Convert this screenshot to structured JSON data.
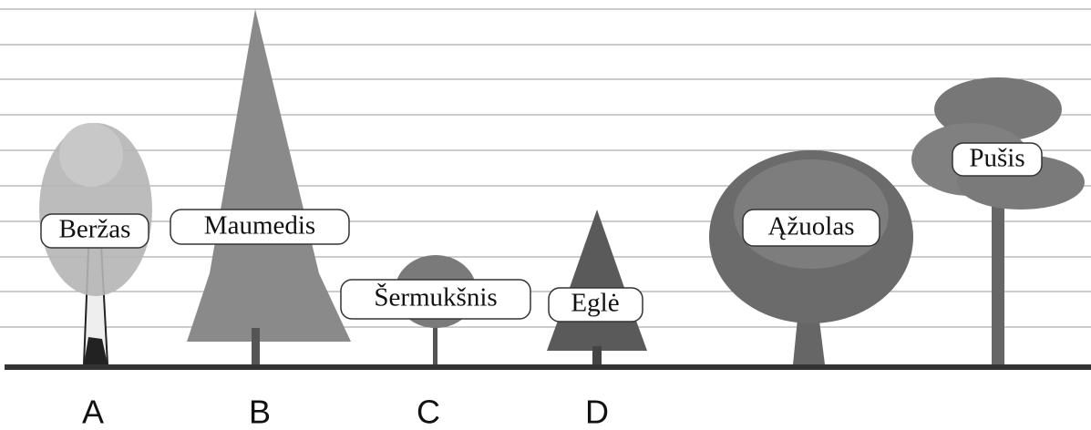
{
  "tree_labels": [
    "Beržas",
    "Maumedis",
    "Šermukšnis",
    "Eglė",
    "Ąžuolas",
    "Pušis"
  ],
  "letters": [
    "A",
    "B",
    "C",
    "D"
  ]
}
